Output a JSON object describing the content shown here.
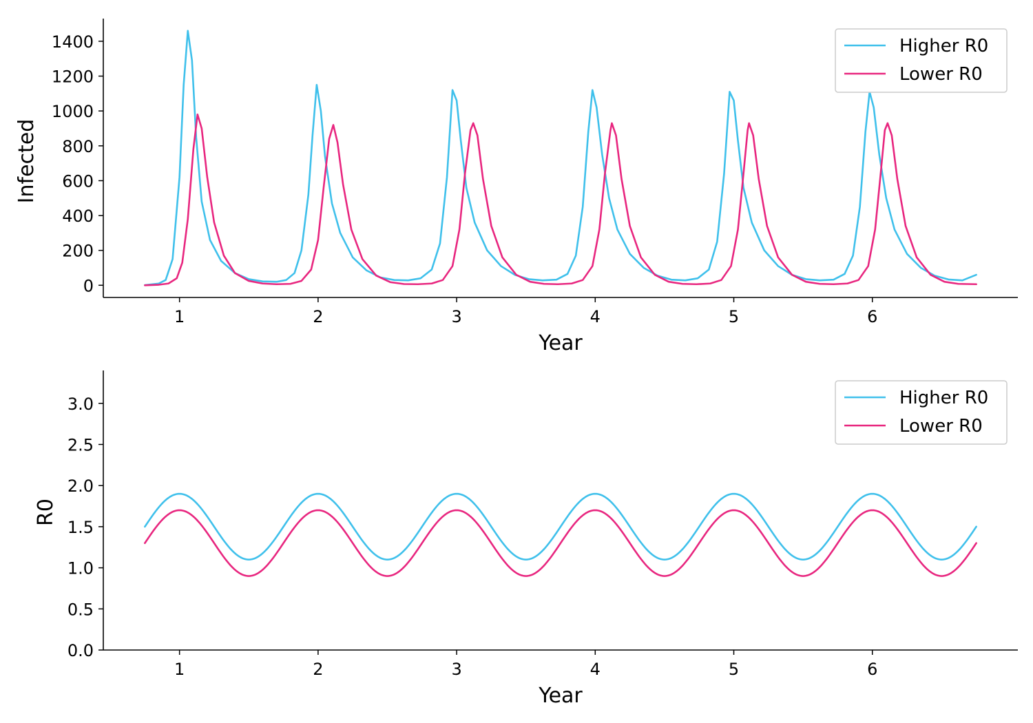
{
  "colors": {
    "higher": "#3fc0eb",
    "lower": "#e8267f",
    "axis": "#000000",
    "legend_border": "#cccccc"
  },
  "chart_data": [
    {
      "type": "line",
      "xlabel": "Year",
      "ylabel": "Infected",
      "xlim": [
        0.45,
        7.05
      ],
      "ylim": [
        -70,
        1530
      ],
      "xticks": [
        1,
        2,
        3,
        4,
        5,
        6
      ],
      "yticks": [
        0,
        200,
        400,
        600,
        800,
        1000,
        1200,
        1400
      ],
      "grid": false,
      "legend_position": "top-right",
      "series": [
        {
          "name": "Higher R0",
          "color": "#3fc0eb",
          "points": [
            [
              0.75,
              1
            ],
            [
              0.85,
              10
            ],
            [
              0.9,
              30
            ],
            [
              0.95,
              150
            ],
            [
              1.0,
              620
            ],
            [
              1.03,
              1150
            ],
            [
              1.06,
              1460
            ],
            [
              1.09,
              1290
            ],
            [
              1.12,
              850
            ],
            [
              1.16,
              480
            ],
            [
              1.22,
              260
            ],
            [
              1.3,
              140
            ],
            [
              1.4,
              70
            ],
            [
              1.5,
              35
            ],
            [
              1.6,
              22
            ],
            [
              1.7,
              20
            ],
            [
              1.77,
              30
            ],
            [
              1.83,
              70
            ],
            [
              1.88,
              200
            ],
            [
              1.93,
              520
            ],
            [
              1.96,
              860
            ],
            [
              1.99,
              1150
            ],
            [
              2.02,
              1000
            ],
            [
              2.05,
              740
            ],
            [
              2.1,
              470
            ],
            [
              2.16,
              300
            ],
            [
              2.25,
              160
            ],
            [
              2.35,
              85
            ],
            [
              2.45,
              45
            ],
            [
              2.55,
              30
            ],
            [
              2.65,
              28
            ],
            [
              2.74,
              40
            ],
            [
              2.82,
              90
            ],
            [
              2.88,
              240
            ],
            [
              2.93,
              620
            ],
            [
              2.97,
              1120
            ],
            [
              3.0,
              1060
            ],
            [
              3.03,
              830
            ],
            [
              3.07,
              560
            ],
            [
              3.13,
              360
            ],
            [
              3.22,
              200
            ],
            [
              3.32,
              110
            ],
            [
              3.42,
              60
            ],
            [
              3.52,
              35
            ],
            [
              3.62,
              28
            ],
            [
              3.72,
              32
            ],
            [
              3.8,
              65
            ],
            [
              3.86,
              170
            ],
            [
              3.91,
              450
            ],
            [
              3.95,
              880
            ],
            [
              3.98,
              1120
            ],
            [
              4.01,
              1020
            ],
            [
              4.05,
              750
            ],
            [
              4.1,
              500
            ],
            [
              4.16,
              320
            ],
            [
              4.25,
              180
            ],
            [
              4.35,
              100
            ],
            [
              4.45,
              55
            ],
            [
              4.55,
              32
            ],
            [
              4.65,
              28
            ],
            [
              4.74,
              40
            ],
            [
              4.82,
              90
            ],
            [
              4.88,
              250
            ],
            [
              4.93,
              640
            ],
            [
              4.97,
              1110
            ],
            [
              5.0,
              1060
            ],
            [
              5.03,
              830
            ],
            [
              5.07,
              560
            ],
            [
              5.13,
              360
            ],
            [
              5.22,
              200
            ],
            [
              5.32,
              110
            ],
            [
              5.42,
              60
            ],
            [
              5.52,
              35
            ],
            [
              5.62,
              28
            ],
            [
              5.72,
              32
            ],
            [
              5.8,
              65
            ],
            [
              5.86,
              170
            ],
            [
              5.91,
              450
            ],
            [
              5.95,
              880
            ],
            [
              5.98,
              1110
            ],
            [
              6.01,
              1020
            ],
            [
              6.05,
              750
            ],
            [
              6.1,
              500
            ],
            [
              6.16,
              320
            ],
            [
              6.25,
              180
            ],
            [
              6.35,
              100
            ],
            [
              6.45,
              55
            ],
            [
              6.55,
              33
            ],
            [
              6.65,
              28
            ],
            [
              6.75,
              60
            ]
          ]
        },
        {
          "name": "Lower R0",
          "color": "#e8267f",
          "points": [
            [
              0.75,
              0
            ],
            [
              0.85,
              3
            ],
            [
              0.92,
              10
            ],
            [
              0.98,
              40
            ],
            [
              1.02,
              130
            ],
            [
              1.06,
              380
            ],
            [
              1.1,
              780
            ],
            [
              1.13,
              980
            ],
            [
              1.16,
              900
            ],
            [
              1.2,
              620
            ],
            [
              1.25,
              360
            ],
            [
              1.32,
              170
            ],
            [
              1.4,
              70
            ],
            [
              1.5,
              25
            ],
            [
              1.6,
              10
            ],
            [
              1.7,
              6
            ],
            [
              1.8,
              8
            ],
            [
              1.88,
              25
            ],
            [
              1.95,
              90
            ],
            [
              2.0,
              260
            ],
            [
              2.04,
              560
            ],
            [
              2.08,
              840
            ],
            [
              2.11,
              920
            ],
            [
              2.14,
              820
            ],
            [
              2.18,
              580
            ],
            [
              2.24,
              320
            ],
            [
              2.32,
              150
            ],
            [
              2.42,
              55
            ],
            [
              2.52,
              18
            ],
            [
              2.62,
              7
            ],
            [
              2.72,
              6
            ],
            [
              2.82,
              10
            ],
            [
              2.9,
              30
            ],
            [
              2.97,
              110
            ],
            [
              3.02,
              320
            ],
            [
              3.06,
              640
            ],
            [
              3.1,
              890
            ],
            [
              3.12,
              930
            ],
            [
              3.15,
              860
            ],
            [
              3.19,
              610
            ],
            [
              3.25,
              340
            ],
            [
              3.33,
              160
            ],
            [
              3.43,
              60
            ],
            [
              3.53,
              20
            ],
            [
              3.63,
              8
            ],
            [
              3.73,
              6
            ],
            [
              3.83,
              10
            ],
            [
              3.91,
              30
            ],
            [
              3.98,
              110
            ],
            [
              4.03,
              320
            ],
            [
              4.07,
              640
            ],
            [
              4.11,
              890
            ],
            [
              4.12,
              930
            ],
            [
              4.15,
              860
            ],
            [
              4.19,
              610
            ],
            [
              4.25,
              340
            ],
            [
              4.33,
              160
            ],
            [
              4.43,
              60
            ],
            [
              4.53,
              20
            ],
            [
              4.63,
              8
            ],
            [
              4.73,
              6
            ],
            [
              4.83,
              10
            ],
            [
              4.91,
              30
            ],
            [
              4.98,
              110
            ],
            [
              5.03,
              320
            ],
            [
              5.07,
              640
            ],
            [
              5.1,
              890
            ],
            [
              5.11,
              930
            ],
            [
              5.14,
              860
            ],
            [
              5.18,
              610
            ],
            [
              5.24,
              340
            ],
            [
              5.32,
              160
            ],
            [
              5.42,
              60
            ],
            [
              5.52,
              20
            ],
            [
              5.62,
              8
            ],
            [
              5.72,
              6
            ],
            [
              5.82,
              10
            ],
            [
              5.9,
              30
            ],
            [
              5.97,
              110
            ],
            [
              6.02,
              320
            ],
            [
              6.06,
              640
            ],
            [
              6.09,
              890
            ],
            [
              6.11,
              930
            ],
            [
              6.14,
              860
            ],
            [
              6.18,
              610
            ],
            [
              6.24,
              340
            ],
            [
              6.32,
              160
            ],
            [
              6.42,
              60
            ],
            [
              6.52,
              20
            ],
            [
              6.62,
              8
            ],
            [
              6.75,
              6
            ]
          ]
        }
      ]
    },
    {
      "type": "line",
      "xlabel": "Year",
      "ylabel": "R0",
      "xlim": [
        0.45,
        7.05
      ],
      "ylim": [
        0.0,
        3.4
      ],
      "xticks": [
        1,
        2,
        3,
        4,
        5,
        6
      ],
      "yticks": [
        "0.0",
        "0.5",
        "1.0",
        "1.5",
        "2.0",
        "2.5",
        "3.0"
      ],
      "grid": false,
      "legend_position": "top-right",
      "series": [
        {
          "name": "Higher R0",
          "color": "#3fc0eb",
          "formula": "1.5 + 0.4*cos(2*pi*(x-1))",
          "x_range": [
            0.75,
            6.75
          ],
          "mean": 1.5,
          "amplitude": 0.4,
          "period": 1,
          "peak_x": 1
        },
        {
          "name": "Lower R0",
          "color": "#e8267f",
          "formula": "1.3 + 0.4*cos(2*pi*(x-1))",
          "x_range": [
            0.75,
            6.75
          ],
          "mean": 1.3,
          "amplitude": 0.4,
          "period": 1,
          "peak_x": 1
        }
      ]
    }
  ]
}
